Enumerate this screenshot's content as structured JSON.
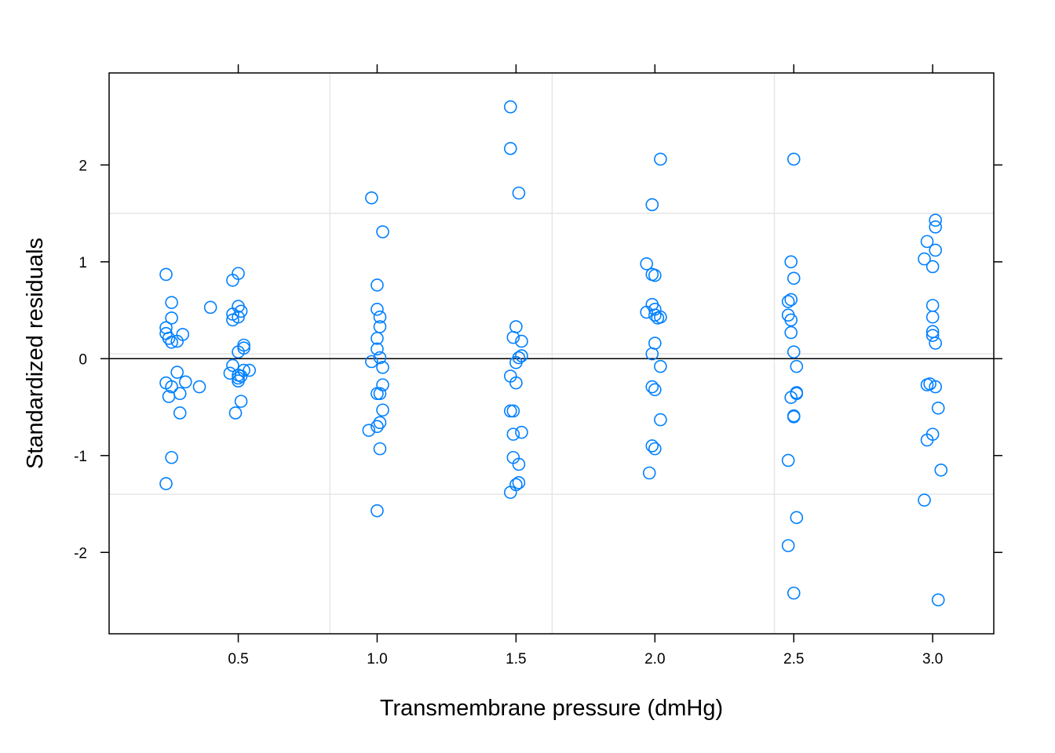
{
  "chart_data": {
    "type": "scatter",
    "title": "",
    "xlabel": "Transmembrane pressure (dmHg)",
    "ylabel": "Standardized residuals",
    "xlim": [
      0.035,
      3.22
    ],
    "ylim": [
      -2.84,
      2.95
    ],
    "x_ticks": [
      0.5,
      1.0,
      1.5,
      2.0,
      2.5,
      3.0
    ],
    "x_tick_labels": [
      "0.5",
      "1.0",
      "1.5",
      "2.0",
      "2.5",
      "3.0"
    ],
    "y_ticks": [
      -2,
      -1,
      0,
      1,
      2
    ],
    "y_tick_labels": [
      "-2",
      "-1",
      "0",
      "1",
      "2"
    ],
    "reference_line_y": 0,
    "grid_x": [
      0.83,
      1.63,
      2.43
    ],
    "grid_y": [
      -1.4,
      0.05,
      1.5
    ],
    "marker": "open-circle",
    "colors": {
      "points": "#0080ff",
      "grid": "#e6e6e6",
      "axis": "#000000",
      "background": "#ffffff"
    },
    "points": [
      [
        0.24,
        0.87
      ],
      [
        0.26,
        0.58
      ],
      [
        0.24,
        0.32
      ],
      [
        0.26,
        0.42
      ],
      [
        0.24,
        0.26
      ],
      [
        0.3,
        0.25
      ],
      [
        0.25,
        0.21
      ],
      [
        0.26,
        0.17
      ],
      [
        0.28,
        0.18
      ],
      [
        0.4,
        0.53
      ],
      [
        0.28,
        -0.14
      ],
      [
        0.24,
        -0.25
      ],
      [
        0.31,
        -0.24
      ],
      [
        0.26,
        -0.29
      ],
      [
        0.36,
        -0.29
      ],
      [
        0.29,
        -0.36
      ],
      [
        0.25,
        -0.39
      ],
      [
        0.29,
        -0.56
      ],
      [
        0.26,
        -1.02
      ],
      [
        0.24,
        -1.29
      ],
      [
        0.5,
        0.88
      ],
      [
        0.48,
        0.81
      ],
      [
        0.5,
        0.54
      ],
      [
        0.51,
        0.49
      ],
      [
        0.48,
        0.46
      ],
      [
        0.5,
        0.43
      ],
      [
        0.48,
        0.4
      ],
      [
        0.52,
        0.14
      ],
      [
        0.52,
        0.11
      ],
      [
        0.5,
        0.07
      ],
      [
        0.48,
        -0.07
      ],
      [
        0.52,
        -0.12
      ],
      [
        0.54,
        -0.12
      ],
      [
        0.47,
        -0.15
      ],
      [
        0.5,
        -0.17
      ],
      [
        0.51,
        -0.18
      ],
      [
        0.5,
        -0.2
      ],
      [
        0.5,
        -0.23
      ],
      [
        0.51,
        -0.44
      ],
      [
        0.49,
        -0.56
      ],
      [
        0.98,
        1.66
      ],
      [
        1.02,
        1.31
      ],
      [
        1.0,
        0.76
      ],
      [
        1.0,
        0.51
      ],
      [
        1.01,
        0.43
      ],
      [
        1.01,
        0.33
      ],
      [
        1.0,
        0.21
      ],
      [
        1.0,
        0.1
      ],
      [
        1.01,
        0.01
      ],
      [
        0.98,
        -0.03
      ],
      [
        1.02,
        -0.09
      ],
      [
        1.02,
        -0.27
      ],
      [
        1.0,
        -0.36
      ],
      [
        1.01,
        -0.36
      ],
      [
        1.02,
        -0.53
      ],
      [
        1.01,
        -0.66
      ],
      [
        1.0,
        -0.7
      ],
      [
        0.97,
        -0.74
      ],
      [
        1.01,
        -0.93
      ],
      [
        1.0,
        -1.57
      ],
      [
        1.48,
        2.6
      ],
      [
        1.48,
        2.17
      ],
      [
        1.51,
        1.71
      ],
      [
        1.5,
        0.33
      ],
      [
        1.49,
        0.22
      ],
      [
        1.52,
        0.18
      ],
      [
        1.52,
        0.03
      ],
      [
        1.51,
        0.01
      ],
      [
        1.5,
        -0.04
      ],
      [
        1.48,
        -0.18
      ],
      [
        1.5,
        -0.25
      ],
      [
        1.48,
        -0.54
      ],
      [
        1.49,
        -0.54
      ],
      [
        1.52,
        -0.76
      ],
      [
        1.49,
        -0.78
      ],
      [
        1.49,
        -1.02
      ],
      [
        1.51,
        -1.09
      ],
      [
        1.51,
        -1.28
      ],
      [
        1.5,
        -1.3
      ],
      [
        1.48,
        -1.38
      ],
      [
        2.02,
        2.06
      ],
      [
        1.99,
        1.59
      ],
      [
        1.97,
        0.98
      ],
      [
        1.99,
        0.87
      ],
      [
        2.0,
        0.86
      ],
      [
        1.99,
        0.56
      ],
      [
        2.0,
        0.51
      ],
      [
        1.97,
        0.48
      ],
      [
        2.0,
        0.45
      ],
      [
        2.01,
        0.42
      ],
      [
        2.02,
        0.43
      ],
      [
        2.0,
        0.16
      ],
      [
        1.99,
        0.05
      ],
      [
        2.02,
        -0.08
      ],
      [
        1.99,
        -0.29
      ],
      [
        2.0,
        -0.32
      ],
      [
        2.02,
        -0.63
      ],
      [
        1.99,
        -0.9
      ],
      [
        2.0,
        -0.93
      ],
      [
        1.98,
        -1.18
      ],
      [
        2.5,
        2.06
      ],
      [
        2.49,
        1.0
      ],
      [
        2.5,
        0.83
      ],
      [
        2.48,
        0.59
      ],
      [
        2.49,
        0.61
      ],
      [
        2.48,
        0.45
      ],
      [
        2.49,
        0.4
      ],
      [
        2.49,
        0.27
      ],
      [
        2.5,
        0.07
      ],
      [
        2.51,
        -0.08
      ],
      [
        2.51,
        -0.35
      ],
      [
        2.51,
        -0.36
      ],
      [
        2.49,
        -0.4
      ],
      [
        2.5,
        -0.59
      ],
      [
        2.5,
        -0.6
      ],
      [
        2.48,
        -1.05
      ],
      [
        2.51,
        -1.64
      ],
      [
        2.48,
        -1.93
      ],
      [
        2.5,
        -2.42
      ],
      [
        3.01,
        1.43
      ],
      [
        3.01,
        1.36
      ],
      [
        2.98,
        1.21
      ],
      [
        3.01,
        1.12
      ],
      [
        2.97,
        1.03
      ],
      [
        3.0,
        0.95
      ],
      [
        3.0,
        0.55
      ],
      [
        3.0,
        0.43
      ],
      [
        3.0,
        0.28
      ],
      [
        3.0,
        0.24
      ],
      [
        3.01,
        0.16
      ],
      [
        2.98,
        -0.27
      ],
      [
        2.99,
        -0.26
      ],
      [
        3.01,
        -0.29
      ],
      [
        3.02,
        -0.51
      ],
      [
        3.0,
        -0.78
      ],
      [
        2.98,
        -0.84
      ],
      [
        3.03,
        -1.15
      ],
      [
        2.97,
        -1.46
      ],
      [
        3.02,
        -2.49
      ]
    ]
  }
}
